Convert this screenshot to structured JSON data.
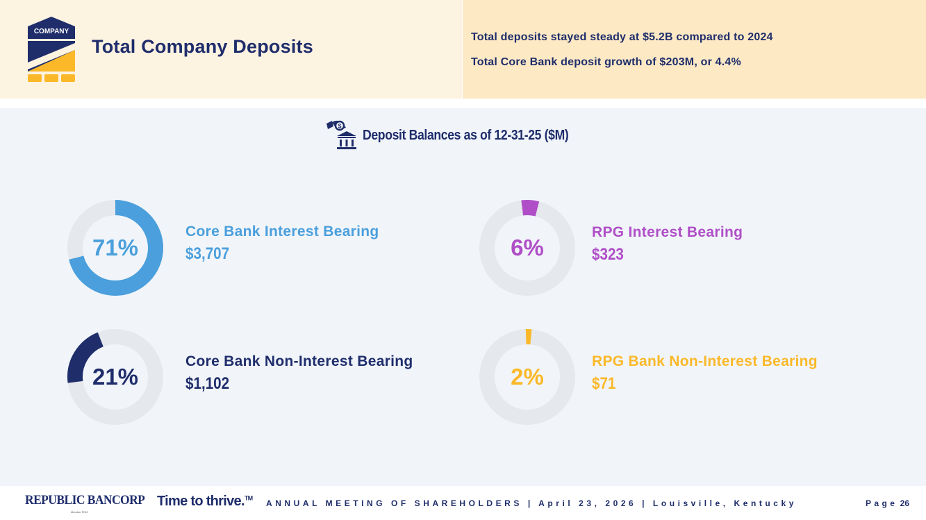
{
  "header": {
    "badge_text": "COMPANY",
    "title": "Total Company Deposits",
    "bullets": [
      "Total deposits stayed steady at $5.2B compared to 2024",
      "Total Core Bank deposit growth of $203M, or 4.4%"
    ]
  },
  "section": {
    "title": "Deposit Balances as of 12-31-25 ($M)",
    "icon": "bank-deposit-icon"
  },
  "chart_data": {
    "type": "pie",
    "variant": "donut",
    "title": "Deposit Balances as of 12-31-25 ($M)",
    "track_color": "#e5e8ec",
    "segments": [
      {
        "label": "Core Bank Interest Bearing",
        "value": 3707,
        "value_text": "$3,707",
        "percent": 71,
        "percent_text": "71%",
        "color": "#4a9fdc"
      },
      {
        "label": "RPG Interest Bearing",
        "value": 323,
        "value_text": "$323",
        "percent": 6,
        "percent_text": "6%",
        "color": "#b04ec7"
      },
      {
        "label": "Core Bank Non-Interest Bearing",
        "value": 1102,
        "value_text": "$1,102",
        "percent": 21,
        "percent_text": "21%",
        "color": "#1f2d6b"
      },
      {
        "label": "RPG Bank Non-Interest Bearing",
        "value": 71,
        "value_text": "$71",
        "percent": 2,
        "percent_text": "2%",
        "color": "#fbb829"
      }
    ]
  },
  "footer": {
    "brand": "REPUBLIC BANCORP",
    "brand_sub": "Member FDIC",
    "tagline": "Time to thrive.",
    "tagline_mark": "TM",
    "meeting": "ANNUAL MEETING OF SHAREHOLDERS | April 23, 2026 | Louisville, Kentucky",
    "page_label": "Page",
    "page_number": "26"
  }
}
